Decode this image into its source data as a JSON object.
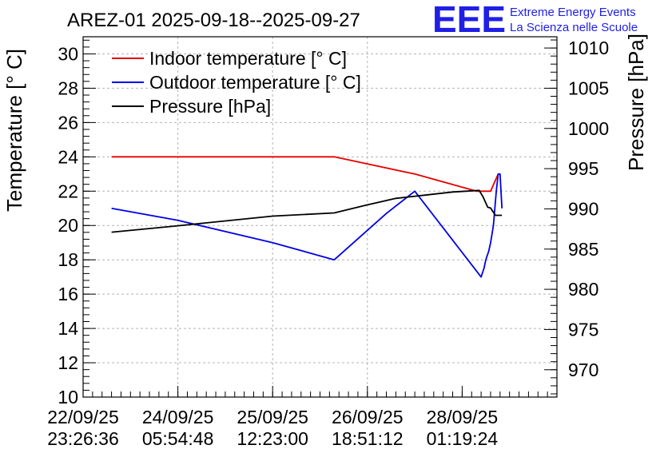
{
  "chart_data": {
    "type": "line",
    "title": "AREZ-01 2025-09-18--2025-09-27",
    "logo": {
      "mark": "EEE",
      "line1": "Extreme Energy Events",
      "line2": "La Scienza nelle Scuole"
    },
    "ylabel_left": "Temperature [° C]",
    "ylabel_right": "Pressure [hPa]",
    "ylim_left": [
      10,
      31
    ],
    "yticks_left": [
      "10",
      "12",
      "14",
      "16",
      "18",
      "20",
      "22",
      "24",
      "26",
      "28",
      "30"
    ],
    "ylim_right": [
      966.6,
      1011.4
    ],
    "yticks_right": [
      "970",
      "975",
      "980",
      "985",
      "990",
      "995",
      "1000",
      "1005",
      "1010"
    ],
    "xlim": [
      0,
      5
    ],
    "xticks": [
      {
        "date": "22/09/25",
        "time": "23:26:36"
      },
      {
        "date": "24/09/25",
        "time": "05:54:48"
      },
      {
        "date": "25/09/25",
        "time": "12:23:00"
      },
      {
        "date": "26/09/25",
        "time": "18:51:12"
      },
      {
        "date": "28/09/25",
        "time": "01:19:24"
      }
    ],
    "grid": true,
    "legend_position": "top-left",
    "series": [
      {
        "name": "Indoor temperature [° C]",
        "color": "#e60000",
        "axis": "left",
        "x": [
          0.3,
          1.0,
          2.0,
          2.65,
          3.5,
          4.15,
          4.3,
          4.38
        ],
        "y": [
          24,
          24,
          24,
          24,
          23,
          22,
          22,
          23
        ]
      },
      {
        "name": "Outdoor temperature [° C]",
        "color": "#0000e6",
        "axis": "left",
        "x": [
          0.3,
          1.0,
          2.0,
          2.65,
          3.2,
          3.5,
          4.2,
          4.23,
          4.25,
          4.28,
          4.3,
          4.33,
          4.36,
          4.38,
          4.4,
          4.42
        ],
        "y": [
          21,
          20.3,
          19,
          18,
          20.7,
          22,
          17,
          17.5,
          18,
          18.5,
          19,
          20,
          22,
          23,
          23,
          21
        ]
      },
      {
        "name": "Pressure [hPa]",
        "color": "#000000",
        "axis": "right",
        "x": [
          0.3,
          1.0,
          2.0,
          2.65,
          3.0,
          3.3,
          3.6,
          3.9,
          4.18,
          4.22,
          4.27,
          4.3,
          4.35,
          4.38,
          4.42
        ],
        "y": [
          987.1,
          987.9,
          989.1,
          989.5,
          990.5,
          991.3,
          991.7,
          992.1,
          992.3,
          991.5,
          990.2,
          990.1,
          989.2,
          989.2,
          989.2
        ]
      }
    ]
  }
}
